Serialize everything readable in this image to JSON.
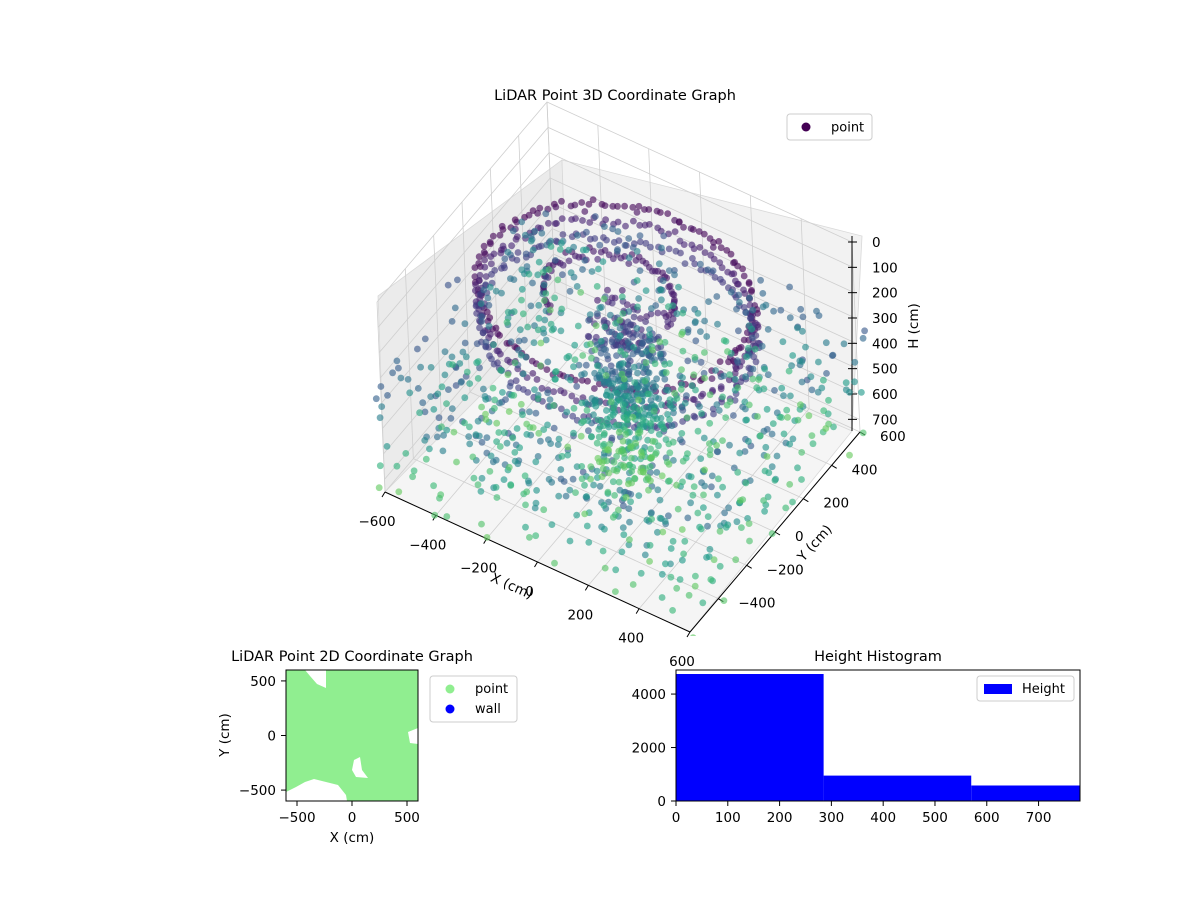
{
  "chart_data": [
    {
      "type": "scatter",
      "title": "LiDAR Point 3D Coordinate Graph",
      "projection": "3d",
      "xlabel": "X (cm)",
      "ylabel": "Y (cm)",
      "zlabel": "H (cm)",
      "x_ticks": [
        -600,
        -400,
        -200,
        0,
        200,
        400,
        600
      ],
      "y_ticks": [
        -400,
        -200,
        0,
        200,
        400,
        600
      ],
      "z_ticks": [
        0,
        100,
        200,
        300,
        400,
        500,
        600,
        700
      ],
      "xlim": [
        -600,
        600
      ],
      "ylim": [
        -600,
        600
      ],
      "zlim": [
        0,
        750
      ],
      "z_inverted": true,
      "grid": true,
      "legend": {
        "position": "top-right",
        "entries": [
          {
            "name": "point",
            "color": "#440154"
          }
        ]
      },
      "colormap": "viridis",
      "series": [
        {
          "name": "point",
          "description_points": "samples",
          "x": [
            -450,
            -300,
            -150,
            0,
            150,
            300,
            450,
            -420,
            420,
            -350,
            350,
            -200,
            200,
            0,
            -480,
            480,
            0,
            0,
            -240,
            240
          ],
          "y": [
            0,
            320,
            420,
            450,
            420,
            320,
            0,
            -180,
            -180,
            -300,
            -300,
            -400,
            -400,
            -450,
            150,
            150,
            0,
            100,
            100,
            -100
          ],
          "h": [
            120,
            110,
            110,
            100,
            110,
            120,
            130,
            200,
            210,
            260,
            270,
            280,
            300,
            320,
            150,
            160,
            700,
            600,
            550,
            650
          ]
        }
      ]
    },
    {
      "type": "scatter",
      "title": "LiDAR Point 2D Coordinate Graph",
      "xlabel": "X (cm)",
      "ylabel": "Y (cm)",
      "x_ticks": [
        -500,
        0,
        500
      ],
      "y_ticks": [
        -500,
        0,
        500
      ],
      "xlim": [
        -600,
        600
      ],
      "ylim": [
        -600,
        600
      ],
      "legend": {
        "position": "outside-right",
        "entries": [
          {
            "name": "point",
            "color": "#90ee90"
          },
          {
            "name": "wall",
            "color": "#0000ff"
          }
        ]
      }
    },
    {
      "type": "bar",
      "title": "Height Histogram",
      "bins": [
        [
          0,
          285
        ],
        [
          285,
          570
        ],
        [
          570,
          780
        ]
      ],
      "values": [
        4750,
        950,
        580
      ],
      "color": "#0000ff",
      "x_ticks": [
        0,
        100,
        200,
        300,
        400,
        500,
        600,
        700
      ],
      "y_ticks": [
        0,
        2000,
        4000
      ],
      "xlim": [
        0,
        780
      ],
      "ylim": [
        0,
        4900
      ],
      "legend": {
        "position": "top-right",
        "entries": [
          {
            "name": "Height",
            "color": "#0000ff"
          }
        ]
      }
    }
  ]
}
